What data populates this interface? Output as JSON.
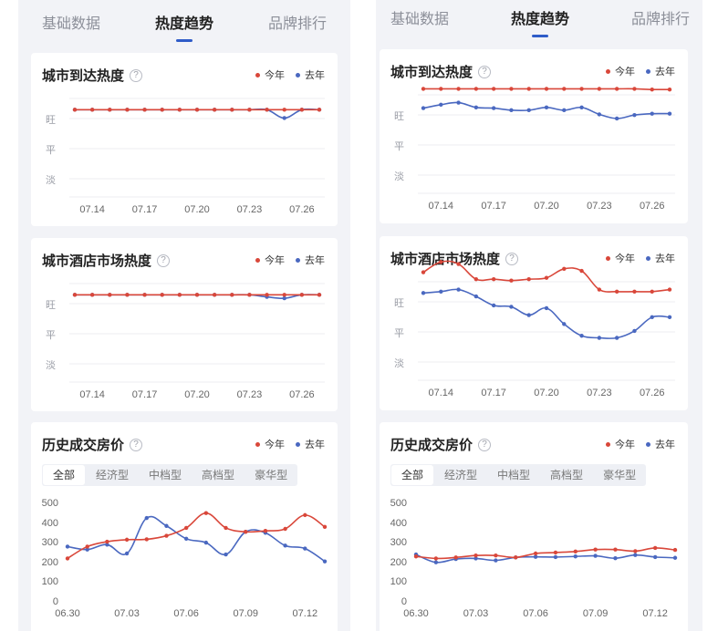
{
  "tabs": [
    "基础数据",
    "热度趋势",
    "品牌排行"
  ],
  "active_tab": 1,
  "legend": {
    "this_year": "今年",
    "last_year": "去年"
  },
  "colors": {
    "this_year": "#d9473a",
    "last_year": "#4a68c0",
    "tab_indicator": "#2f5cc8"
  },
  "heat_levels": [
    "旺",
    "平",
    "淡"
  ],
  "heat_x_ticks": [
    "07.14",
    "07.17",
    "07.20",
    "07.23",
    "07.26"
  ],
  "price_tabs": [
    "全部",
    "经济型",
    "中档型",
    "高档型",
    "豪华型"
  ],
  "price_y_ticks": [
    "500",
    "400",
    "300",
    "200",
    "100",
    "0"
  ],
  "price_x_ticks": [
    "06.30",
    "07.03",
    "07.06",
    "07.09",
    "07.12"
  ],
  "cards": {
    "arrival": {
      "title": "城市到达热度"
    },
    "hotel": {
      "title": "城市酒店市场热度"
    },
    "price": {
      "title": "历史成交房价"
    }
  },
  "help_icon": "question-circle-icon",
  "chart_data": [
    {
      "id": "left-arrival",
      "type": "line",
      "title": "城市到达热度",
      "x": [
        "07.13",
        "07.14",
        "07.15",
        "07.16",
        "07.17",
        "07.18",
        "07.19",
        "07.20",
        "07.21",
        "07.22",
        "07.23",
        "07.24",
        "07.25",
        "07.26",
        "07.27"
      ],
      "series": [
        {
          "name": "今年",
          "values": [
            1.0,
            1.0,
            1.0,
            1.0,
            1.0,
            1.0,
            1.0,
            1.0,
            1.0,
            1.0,
            1.0,
            1.0,
            1.0,
            1.0,
            1.0
          ]
        },
        {
          "name": "去年",
          "values": [
            1.0,
            1.0,
            1.0,
            1.0,
            1.0,
            1.0,
            1.0,
            1.0,
            1.0,
            1.0,
            1.0,
            1.0,
            0.88,
            1.0,
            1.0
          ]
        }
      ],
      "y_categories": [
        "淡",
        "平",
        "旺"
      ]
    },
    {
      "id": "left-hotel",
      "type": "line",
      "title": "城市酒店市场热度",
      "x": [
        "07.13",
        "07.14",
        "07.15",
        "07.16",
        "07.17",
        "07.18",
        "07.19",
        "07.20",
        "07.21",
        "07.22",
        "07.23",
        "07.24",
        "07.25",
        "07.26",
        "07.27"
      ],
      "series": [
        {
          "name": "今年",
          "values": [
            1.0,
            1.0,
            1.0,
            1.0,
            1.0,
            1.0,
            1.0,
            1.0,
            1.0,
            1.0,
            1.0,
            1.0,
            1.0,
            1.0,
            1.0
          ]
        },
        {
          "name": "去年",
          "values": [
            1.0,
            1.0,
            1.0,
            1.0,
            1.0,
            1.0,
            1.0,
            1.0,
            1.0,
            1.0,
            1.0,
            0.97,
            0.95,
            1.0,
            1.0
          ]
        }
      ],
      "y_categories": [
        "淡",
        "平",
        "旺"
      ]
    },
    {
      "id": "left-price",
      "type": "line",
      "title": "历史成交房价",
      "x": [
        "06.30",
        "07.01",
        "07.02",
        "07.03",
        "07.04",
        "07.05",
        "07.06",
        "07.07",
        "07.08",
        "07.09",
        "07.10",
        "07.11",
        "07.12",
        "07.13"
      ],
      "series": [
        {
          "name": "今年",
          "values": [
            225,
            285,
            310,
            320,
            322,
            340,
            380,
            455,
            380,
            360,
            365,
            375,
            445,
            385
          ]
        },
        {
          "name": "去年",
          "values": [
            285,
            270,
            295,
            250,
            430,
            390,
            325,
            305,
            245,
            360,
            355,
            290,
            275,
            210
          ]
        }
      ],
      "ylim": [
        0,
        500
      ]
    },
    {
      "id": "right-arrival",
      "type": "line",
      "title": "城市到达热度",
      "x": [
        "07.13",
        "07.14",
        "07.15",
        "07.16",
        "07.17",
        "07.18",
        "07.19",
        "07.20",
        "07.21",
        "07.22",
        "07.23",
        "07.24",
        "07.25",
        "07.26",
        "07.27"
      ],
      "series": [
        {
          "name": "今年",
          "values": [
            1.25,
            1.25,
            1.25,
            1.25,
            1.25,
            1.25,
            1.25,
            1.25,
            1.25,
            1.25,
            1.25,
            1.25,
            1.25,
            1.24,
            1.24
          ]
        },
        {
          "name": "去年",
          "values": [
            0.97,
            1.02,
            1.05,
            0.98,
            0.97,
            0.94,
            0.94,
            0.98,
            0.94,
            0.98,
            0.88,
            0.82,
            0.87,
            0.89,
            0.89
          ]
        }
      ],
      "y_categories": [
        "淡",
        "平",
        "旺"
      ]
    },
    {
      "id": "right-hotel",
      "type": "line",
      "title": "城市酒店市场热度",
      "x": [
        "07.13",
        "07.14",
        "07.15",
        "07.16",
        "07.17",
        "07.18",
        "07.19",
        "07.20",
        "07.21",
        "07.22",
        "07.23",
        "07.24",
        "07.25",
        "07.26",
        "07.27"
      ],
      "series": [
        {
          "name": "今年",
          "values": [
            1.3,
            1.45,
            1.42,
            1.2,
            1.2,
            1.18,
            1.2,
            1.22,
            1.35,
            1.32,
            1.05,
            1.02,
            1.02,
            1.02,
            1.05
          ]
        },
        {
          "name": "去年",
          "values": [
            1.0,
            1.02,
            1.05,
            0.95,
            0.82,
            0.8,
            0.68,
            0.78,
            0.55,
            0.38,
            0.35,
            0.35,
            0.45,
            0.65,
            0.65
          ]
        }
      ],
      "y_categories": [
        "淡",
        "平",
        "旺"
      ]
    },
    {
      "id": "right-price",
      "type": "line",
      "title": "历史成交房价",
      "x": [
        "06.30",
        "07.01",
        "07.02",
        "07.03",
        "07.04",
        "07.05",
        "07.06",
        "07.07",
        "07.08",
        "07.09",
        "07.10",
        "07.11",
        "07.12",
        "07.13"
      ],
      "series": [
        {
          "name": "今年",
          "values": [
            235,
            225,
            230,
            240,
            240,
            230,
            250,
            255,
            260,
            270,
            270,
            262,
            278,
            268
          ]
        },
        {
          "name": "去年",
          "values": [
            245,
            205,
            222,
            225,
            215,
            230,
            233,
            232,
            235,
            238,
            226,
            242,
            232,
            228
          ]
        }
      ],
      "ylim": [
        0,
        500
      ]
    }
  ]
}
